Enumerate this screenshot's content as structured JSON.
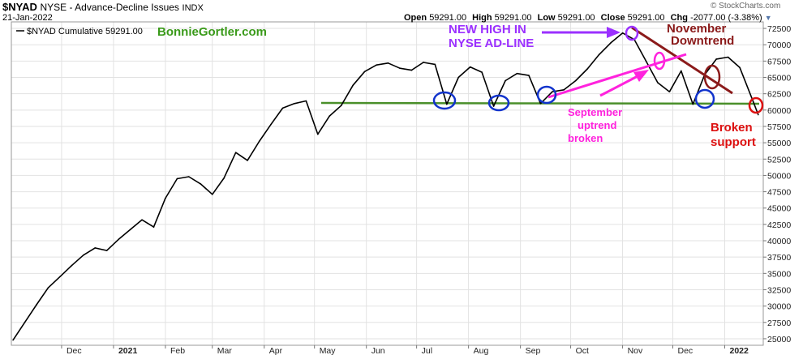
{
  "header": {
    "symbol": "$NYAD",
    "name": "NYSE - Advance-Decline Issues",
    "exchange": "INDX",
    "date": "21-Jan-2022",
    "copyright": "© StockCharts.com",
    "ohlc": {
      "open_label": "Open",
      "open": "59291.00",
      "high_label": "High",
      "high": "59291.00",
      "low_label": "Low",
      "low": "59291.00",
      "close_label": "Close",
      "close": "59291.00",
      "chg_label": "Chg",
      "chg": "-2077.00 (-3.38%)"
    }
  },
  "legend": {
    "series_label": "$NYAD Cumulative 59291.00",
    "watermark": "BonnieGortler.com"
  },
  "annotations": {
    "new_high": [
      "NEW HIGH IN",
      "NYSE AD-LINE"
    ],
    "november": [
      "November",
      "Downtrend"
    ],
    "september": [
      "September",
      "uptrend",
      "broken"
    ],
    "broken": [
      "Broken",
      "support"
    ]
  },
  "colors": {
    "price_line": "#000000",
    "support_line": "#4a8f2a",
    "nov_downtrend": "#8b1a1a",
    "sep_uptrend": "#ff22dd",
    "new_high_text": "#9b30ff",
    "broken_support": "#dd1111",
    "circle_blue": "#1133cc",
    "grid": "#e2e2e2",
    "watermark": "#3a9a1a"
  },
  "chart_data": {
    "type": "line",
    "title": "$NYAD NYSE - Advance-Decline Issues INDX",
    "series_name": "$NYAD Cumulative",
    "ylim": [
      24000,
      73500
    ],
    "y_ticks": [
      25000,
      27500,
      30000,
      32500,
      35000,
      37500,
      40000,
      42500,
      45000,
      47500,
      50000,
      52500,
      55000,
      57500,
      60000,
      62500,
      65000,
      67500,
      70000,
      72500
    ],
    "x_ticks": [
      "Dec",
      "2021",
      "Feb",
      "Mar",
      "Apr",
      "May",
      "Jun",
      "Jul",
      "Aug",
      "Sep",
      "Oct",
      "Nov",
      "Dec",
      "2022"
    ],
    "x": [
      "2020-11-02",
      "2020-11-09",
      "2020-11-16",
      "2020-11-23",
      "2020-11-30",
      "2020-12-07",
      "2020-12-14",
      "2020-12-21",
      "2020-12-28",
      "2021-01-04",
      "2021-01-11",
      "2021-01-18",
      "2021-01-25",
      "2021-02-01",
      "2021-02-08",
      "2021-02-15",
      "2021-02-22",
      "2021-03-01",
      "2021-03-08",
      "2021-03-15",
      "2021-03-22",
      "2021-03-29",
      "2021-04-05",
      "2021-04-12",
      "2021-04-19",
      "2021-04-26",
      "2021-05-03",
      "2021-05-10",
      "2021-05-17",
      "2021-05-24",
      "2021-05-31",
      "2021-06-07",
      "2021-06-14",
      "2021-06-21",
      "2021-06-28",
      "2021-07-05",
      "2021-07-12",
      "2021-07-19",
      "2021-07-26",
      "2021-08-02",
      "2021-08-09",
      "2021-08-16",
      "2021-08-23",
      "2021-08-30",
      "2021-09-06",
      "2021-09-13",
      "2021-09-20",
      "2021-09-27",
      "2021-10-04",
      "2021-10-11",
      "2021-10-18",
      "2021-10-25",
      "2021-11-01",
      "2021-11-08",
      "2021-11-15",
      "2021-11-22",
      "2021-11-29",
      "2021-12-06",
      "2021-12-13",
      "2021-12-20",
      "2021-12-27",
      "2022-01-03",
      "2022-01-10",
      "2022-01-18",
      "2022-01-21"
    ],
    "values": [
      24800,
      27500,
      30200,
      32800,
      34500,
      36200,
      37800,
      38900,
      38500,
      40200,
      41700,
      43200,
      42100,
      46500,
      49500,
      49800,
      48700,
      47100,
      49600,
      53500,
      52300,
      55200,
      57800,
      60300,
      61000,
      61400,
      56300,
      59100,
      60700,
      63800,
      65900,
      66900,
      67200,
      66400,
      66100,
      67300,
      67000,
      60900,
      65000,
      66600,
      65800,
      60600,
      64500,
      65600,
      65300,
      61000,
      62800,
      63100,
      64500,
      66300,
      68500,
      70300,
      71800,
      70800,
      67500,
      64200,
      62800,
      66000,
      60900,
      65400,
      67800,
      68100,
      66500,
      61300,
      59291
    ]
  }
}
